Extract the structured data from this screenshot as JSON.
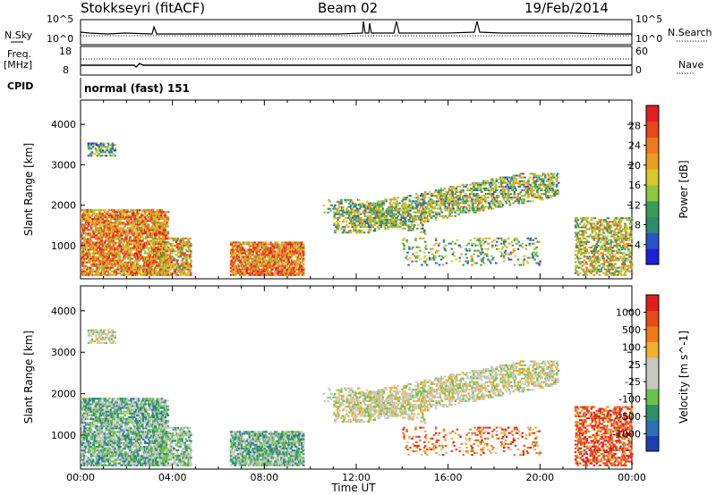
{
  "header": {
    "station": "Stokkseyri (fitACF)",
    "beam": "Beam 02",
    "date": "19/Feb/2014"
  },
  "aux": {
    "nsky_label": "N.Sky",
    "nsearch_label": "N.Search",
    "freq_label": "Freq.",
    "freq_unit": "[MHz]",
    "nave_label": "Nave",
    "cpid_label": "CPID",
    "cpid_value": "normal (fast) 151",
    "noise_left_ticks": [
      "10^5",
      "10^0"
    ],
    "noise_right_ticks": [
      "10^5",
      "10^0"
    ],
    "freq_ticks": [
      "18",
      "8"
    ],
    "nave_ticks": [
      "60",
      "0"
    ]
  },
  "chart_data": [
    {
      "type": "heatmap",
      "title": "",
      "xlabel": "Time UT",
      "ylabel": "Slant Range [km]",
      "x_ticks": [
        "00:00",
        "04:00",
        "08:00",
        "12:00",
        "16:00",
        "20:00",
        "00:00"
      ],
      "xlim_hours": [
        0,
        24
      ],
      "y_ticks": [
        1000,
        2000,
        3000,
        4000
      ],
      "ylim": [
        180,
        4600
      ],
      "colorbar": {
        "label": "Power [dB]",
        "ticks": [
          "28",
          "24",
          "20",
          "16",
          "12",
          "8",
          "4"
        ],
        "colors": [
          "#1f1fd8",
          "#2a55c8",
          "#2f8a6f",
          "#3a9a5a",
          "#8cc63f",
          "#d8c82a",
          "#e8a020",
          "#f07b1c",
          "#e8461e",
          "#e31e1e"
        ]
      }
    },
    {
      "type": "heatmap",
      "title": "",
      "xlabel": "Time UT",
      "ylabel": "Slant Range [km]",
      "x_ticks": [
        "00:00",
        "04:00",
        "08:00",
        "12:00",
        "16:00",
        "20:00",
        "00:00"
      ],
      "xlim_hours": [
        0,
        24
      ],
      "y_ticks": [
        1000,
        2000,
        3000,
        4000
      ],
      "ylim": [
        180,
        4600
      ],
      "colorbar": {
        "label": "Velocity [m s^-1]",
        "ticks": [
          "1000",
          "500",
          "100",
          "25",
          "-25",
          "-100",
          "-500",
          "-1000"
        ],
        "colors": [
          "#1f3fb0",
          "#2f6fb8",
          "#2f8f6a",
          "#6cc24a",
          "#c8c8c4",
          "#c8c8c4",
          "#f0b030",
          "#f07a1a",
          "#e84a1a",
          "#e01e1e"
        ]
      }
    }
  ]
}
